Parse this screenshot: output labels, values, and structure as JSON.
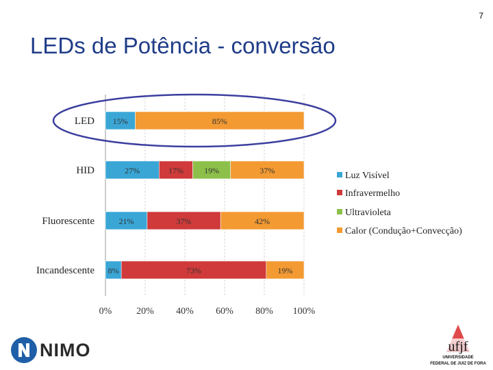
{
  "page_number": "7",
  "title": "LEDs de Potência - conversão",
  "colors": {
    "visible": "#3aa6d6",
    "infrared": "#d03a3a",
    "ultraviolet": "#8cc04a",
    "heat": "#f39a32",
    "ellipse": "#3b3f9e",
    "title": "#1f3c88"
  },
  "chart_data": {
    "type": "bar",
    "orientation": "horizontal",
    "stacked": true,
    "categories": [
      "LED",
      "HID",
      "Fluorescente",
      "Incandescente"
    ],
    "series": [
      {
        "name": "Luz Visível",
        "values": [
          15,
          27,
          21,
          8
        ],
        "labels": [
          "15%",
          "27%",
          "21%",
          "8%"
        ]
      },
      {
        "name": "Infravermelho",
        "values": [
          0,
          17,
          37,
          73
        ],
        "labels": [
          "",
          "17%",
          "37%",
          "73%"
        ]
      },
      {
        "name": "Ultravioleta",
        "values": [
          0,
          19,
          0,
          0
        ],
        "labels": [
          "",
          "19%",
          "",
          ""
        ]
      },
      {
        "name": "Calor (Condução+Convecção)",
        "values": [
          85,
          37,
          42,
          19
        ],
        "labels": [
          "85%",
          "37%",
          "42%",
          "19%"
        ]
      }
    ],
    "xticks": [
      "0%",
      "20%",
      "40%",
      "60%",
      "80%",
      "100%"
    ],
    "xlim": [
      0,
      100
    ],
    "legend_position": "right",
    "grid": true,
    "highlight": "LED"
  },
  "logos": {
    "nimo": "NIMO",
    "ufjf_line1": "UNIVERSIDADE",
    "ufjf_line2": "FEDERAL DE JUIZ DE FORA"
  }
}
